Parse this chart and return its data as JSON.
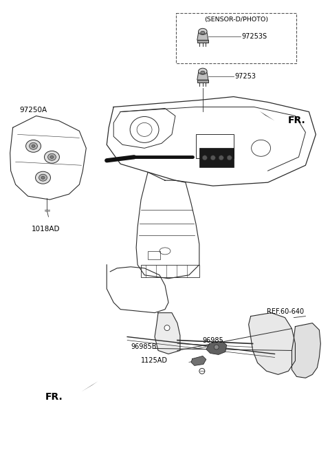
{
  "bg_color": "#ffffff",
  "fig_width": 4.8,
  "fig_height": 6.57,
  "dpi": 100,
  "line_color": "#2a2a2a",
  "text_color": "#000000",
  "gray_fill": "#e8e8e8",
  "dark_fill": "#555555",
  "labels": {
    "sensor_box_title": "(SENSOR-D/PHOTO)",
    "part_97253S": "97253S",
    "part_97253": "97253",
    "fr_top": "FR.",
    "part_97250A": "97250A",
    "part_1018AD": "1018AD",
    "part_96985B": "96985B",
    "part_96985": "96985",
    "part_1125AD": "1125AD",
    "ref_60_640": "REF.60-640",
    "fr_bottom": "FR."
  }
}
